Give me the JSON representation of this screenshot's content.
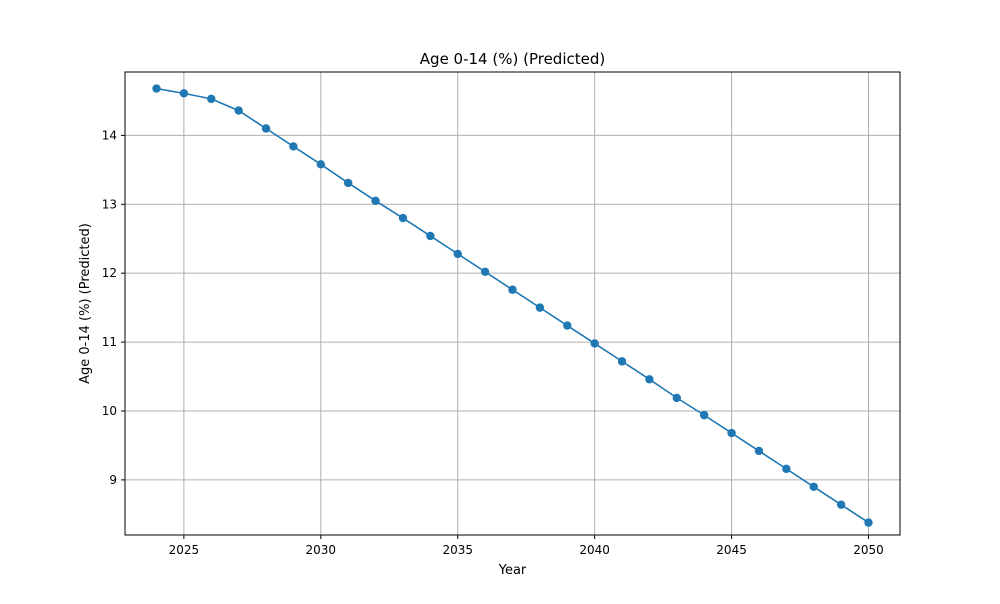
{
  "chart_data": {
    "type": "line",
    "title": "Age 0-14 (%) (Predicted)",
    "xlabel": "Year",
    "ylabel": "Age 0-14 (%) (Predicted)",
    "xlim": [
      2022.85,
      2051.15
    ],
    "ylim": [
      8.2,
      14.92
    ],
    "xticks": [
      2025,
      2030,
      2035,
      2040,
      2045,
      2050
    ],
    "yticks": [
      9,
      10,
      11,
      12,
      13,
      14
    ],
    "grid": true,
    "legend": "none",
    "series": [
      {
        "color": "#1f77b4",
        "marker": "circle",
        "x": [
          2024,
          2025,
          2026,
          2027,
          2028,
          2029,
          2030,
          2031,
          2032,
          2033,
          2034,
          2035,
          2036,
          2037,
          2038,
          2039,
          2040,
          2041,
          2042,
          2043,
          2044,
          2045,
          2046,
          2047,
          2048,
          2049,
          2050
        ],
        "values": [
          14.68,
          14.61,
          14.53,
          14.36,
          14.1,
          13.84,
          13.58,
          13.31,
          13.05,
          12.8,
          12.54,
          12.28,
          12.02,
          11.76,
          11.5,
          11.24,
          10.98,
          10.72,
          10.46,
          10.19,
          9.94,
          9.68,
          9.42,
          9.16,
          8.9,
          8.64,
          8.38
        ]
      }
    ]
  }
}
